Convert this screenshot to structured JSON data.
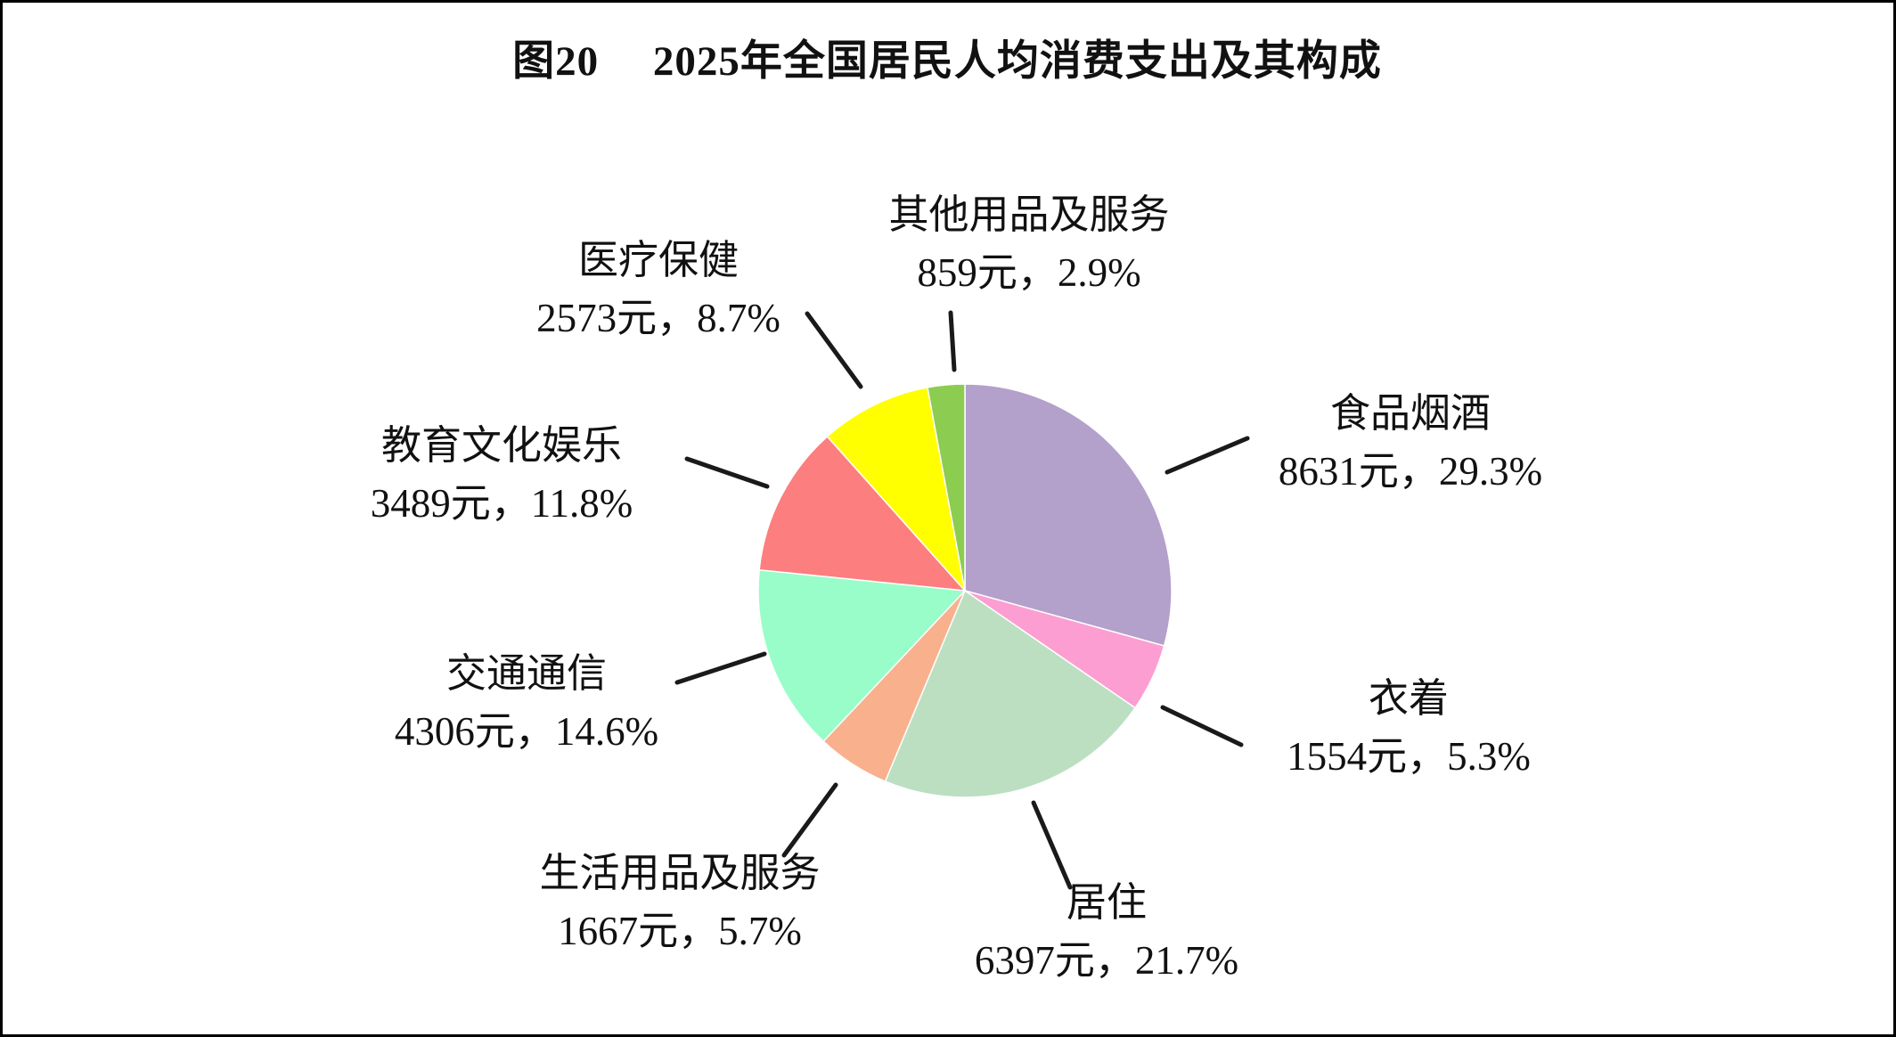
{
  "chart_data": {
    "type": "pie",
    "title": "图20　 2025年全国居民人均消费支出及其构成",
    "unit": "元",
    "start_angle_deg": 0,
    "direction": "clockwise",
    "legend_position": "none",
    "slices": [
      {
        "label": "食品烟酒",
        "value_yuan": 8631,
        "percent": 29.3,
        "color": "#b3a0cb",
        "display": "8631元，29.3%"
      },
      {
        "label": "衣着",
        "value_yuan": 1554,
        "percent": 5.3,
        "color": "#fc9ed1",
        "display": "1554元，5.3%"
      },
      {
        "label": "居住",
        "value_yuan": 6397,
        "percent": 21.7,
        "color": "#bcdfc1",
        "display": "6397元，21.7%"
      },
      {
        "label": "生活用品及服务",
        "value_yuan": 1667,
        "percent": 5.7,
        "color": "#f9b08c",
        "display": "1667元，5.7%"
      },
      {
        "label": "交通通信",
        "value_yuan": 4306,
        "percent": 14.6,
        "color": "#98fdc9",
        "display": "4306元，14.6%"
      },
      {
        "label": "教育文化娱乐",
        "value_yuan": 3489,
        "percent": 11.8,
        "color": "#fc7e7e",
        "display": "3489元，11.8%"
      },
      {
        "label": "医疗保健",
        "value_yuan": 2573,
        "percent": 8.7,
        "color": "#ffff00",
        "display": "2573元，8.7%"
      },
      {
        "label": "其他用品及服务",
        "value_yuan": 859,
        "percent": 2.9,
        "color": "#8ccc50",
        "display": "859元，2.9%"
      }
    ]
  }
}
